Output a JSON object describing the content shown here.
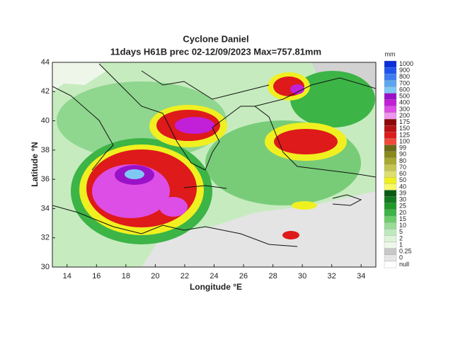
{
  "title": "Cyclone Daniel",
  "subtitle": "11days H61B prec 02-12/09/2023  Max=757.81mm",
  "x_label": "Longitude °E",
  "y_label": "Latitude °N",
  "xlim": [
    13,
    35
  ],
  "ylim": [
    30,
    44
  ],
  "xticks": [
    14,
    16,
    18,
    20,
    22,
    24,
    26,
    28,
    30,
    32,
    34
  ],
  "yticks": [
    30,
    32,
    34,
    36,
    38,
    40,
    42,
    44
  ],
  "colorbar": {
    "unit": "mm",
    "entries": [
      {
        "label": "1000",
        "color": "#0a2fd8"
      },
      {
        "label": "900",
        "color": "#1f55ee"
      },
      {
        "label": "800",
        "color": "#3d7df2"
      },
      {
        "label": "700",
        "color": "#5aa6f2"
      },
      {
        "label": "600",
        "color": "#7fc8f5"
      },
      {
        "label": "500",
        "color": "#9a12c8"
      },
      {
        "label": "400",
        "color": "#c21fd8"
      },
      {
        "label": "300",
        "color": "#dd4ee6"
      },
      {
        "label": "200",
        "color": "#ee95ee"
      },
      {
        "label": "175",
        "color": "#8e0a0a"
      },
      {
        "label": "150",
        "color": "#b81212"
      },
      {
        "label": "125",
        "color": "#de1a1a"
      },
      {
        "label": "100",
        "color": "#f04a3a"
      },
      {
        "label": "99",
        "color": "#6a6a14"
      },
      {
        "label": "90",
        "color": "#8a8a1c"
      },
      {
        "label": "80",
        "color": "#a8a830"
      },
      {
        "label": "70",
        "color": "#c4c450"
      },
      {
        "label": "60",
        "color": "#dede70"
      },
      {
        "label": "50",
        "color": "#f0f020"
      },
      {
        "label": "40",
        "color": "#fafa68"
      },
      {
        "label": "39",
        "color": "#0a5a14"
      },
      {
        "label": "30",
        "color": "#127a1e"
      },
      {
        "label": "25",
        "color": "#20982a"
      },
      {
        "label": "20",
        "color": "#3cb446"
      },
      {
        "label": "15",
        "color": "#6ccc6c"
      },
      {
        "label": "10",
        "color": "#98dc98"
      },
      {
        "label": "5",
        "color": "#bdeabd"
      },
      {
        "label": "2",
        "color": "#dcf4d8"
      },
      {
        "label": "1",
        "color": "#eef8ea"
      },
      {
        "label": "0.25",
        "color": "#c8c8c8"
      },
      {
        "label": "0",
        "color": "#e6e6e6"
      },
      {
        "label": "null",
        "color": "#ffffff"
      }
    ]
  }
}
